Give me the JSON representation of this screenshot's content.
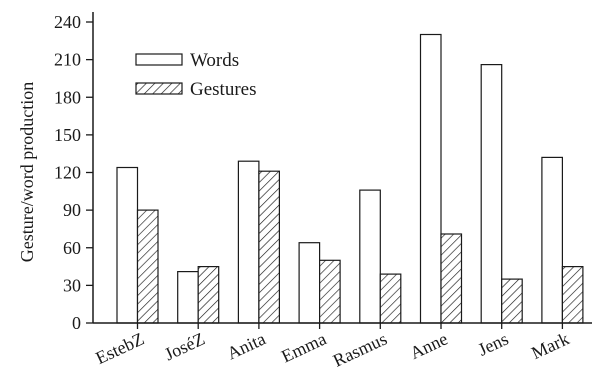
{
  "chart_data": {
    "type": "bar",
    "ylabel": "Gesture/word production",
    "xlabel": "",
    "ylim": [
      0,
      240
    ],
    "yticks": [
      0,
      30,
      60,
      90,
      120,
      150,
      180,
      210,
      240
    ],
    "categories": [
      "EstebZ",
      "JoséZ",
      "Anita",
      "Emma",
      "Rasmus",
      "Anne",
      "Jens",
      "Mark"
    ],
    "series": [
      {
        "name": "Words",
        "fill": "white",
        "values": [
          124,
          41,
          129,
          64,
          106,
          230,
          206,
          132
        ]
      },
      {
        "name": "Gestures",
        "fill": "hatched",
        "values": [
          90,
          45,
          121,
          50,
          39,
          71,
          35,
          45
        ]
      }
    ],
    "legend_position": "top-left",
    "grid": false
  }
}
